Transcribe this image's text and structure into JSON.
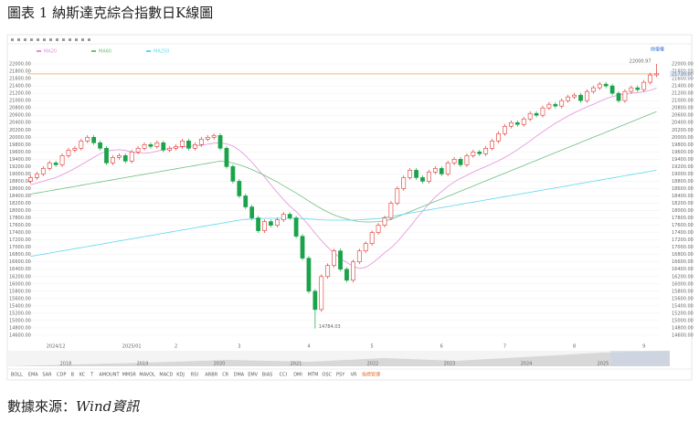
{
  "chart_data": {
    "type": "candlestick",
    "title": "圖表 1 納斯達克綜合指數日K線圖",
    "source_prefix": "數據來源：",
    "source_name": "Wind資訊",
    "adjust_label": "前復權",
    "toolbar": [
      "BOLL",
      "EMA",
      "SAR",
      "CDP",
      "B",
      "KC",
      "T",
      "AMOUNT",
      "MMSR",
      "MAVOL",
      "MACD",
      "KDJ",
      "RSI",
      "ARBR",
      "CR",
      "DMA",
      "EMV",
      "BIAS",
      "CCI",
      "DMI",
      "MTM",
      "OSC",
      "PSY",
      "VR",
      "指標管理"
    ],
    "navigator_years": [
      "2018",
      "2019",
      "2020",
      "2021",
      "2022",
      "2023",
      "2024",
      "2025"
    ],
    "categories": [
      null,
      null,
      null,
      null,
      "2024/12",
      null,
      null,
      null,
      null,
      null,
      null,
      null,
      null,
      null,
      null,
      null,
      "2025/01",
      null,
      null,
      null,
      null,
      null,
      null,
      "2",
      null,
      null,
      null,
      null,
      null,
      null,
      null,
      null,
      null,
      "3",
      null,
      null,
      null,
      null,
      null,
      null,
      null,
      null,
      null,
      null,
      "4",
      null,
      null,
      null,
      null,
      null,
      null,
      null,
      null,
      null,
      "5",
      null,
      null,
      null,
      null,
      null,
      null,
      null,
      null,
      null,
      null,
      "6",
      null,
      null,
      null,
      null,
      null,
      null,
      null,
      null,
      null,
      "7",
      null,
      null,
      null,
      null,
      null,
      null,
      null,
      null,
      null,
      null,
      "8",
      null,
      null,
      null,
      null,
      null,
      null,
      null,
      null,
      null,
      null,
      "9",
      null,
      null
    ],
    "open": [
      18800,
      18900,
      19000,
      19150,
      19300,
      19250,
      19500,
      19650,
      19700,
      19900,
      20000,
      19850,
      19700,
      19300,
      19450,
      19500,
      19350,
      19600,
      19700,
      19800,
      19750,
      19850,
      19650,
      19700,
      19750,
      19900,
      19700,
      19800,
      19950,
      20000,
      20050,
      19700,
      19200,
      18800,
      18400,
      18100,
      17800,
      17450,
      17700,
      17600,
      17750,
      17900,
      17800,
      17300,
      16700,
      15800,
      15300,
      16200,
      16500,
      16900,
      16400,
      16100,
      16600,
      16900,
      17100,
      17400,
      17600,
      17800,
      18200,
      18600,
      18900,
      19100,
      18900,
      18800,
      19050,
      19150,
      19000,
      19300,
      19400,
      19250,
      19500,
      19600,
      19550,
      19700,
      19900,
      20100,
      20300,
      20400,
      20350,
      20500,
      20650,
      20600,
      20800,
      20900,
      20850,
      21000,
      21100,
      21150,
      21000,
      21250,
      21350,
      21450,
      21400,
      21200,
      21000,
      21250,
      21350,
      21300,
      21500,
      21700
    ],
    "high": [
      18960,
      19060,
      19210,
      19360,
      19360,
      19560,
      19710,
      19760,
      19960,
      20060,
      20060,
      19910,
      19760,
      19510,
      19560,
      19560,
      19660,
      19760,
      19860,
      19860,
      19910,
      19910,
      19760,
      19810,
      19960,
      19960,
      19860,
      20010,
      20060,
      20110,
      20110,
      19760,
      19260,
      18860,
      18460,
      18160,
      17860,
      17760,
      17760,
      17810,
      17960,
      17960,
      17860,
      17360,
      16760,
      15860,
      16260,
      16560,
      16960,
      16960,
      16460,
      16660,
      16960,
      17160,
      17460,
      17660,
      17860,
      18260,
      18660,
      18960,
      19160,
      19160,
      18960,
      19110,
      19210,
      19210,
      19360,
      19460,
      19460,
      19560,
      19660,
      19660,
      19760,
      19960,
      20160,
      20360,
      20460,
      20460,
      20560,
      20710,
      20710,
      20860,
      20960,
      20960,
      21060,
      21160,
      21210,
      21210,
      21310,
      21410,
      21510,
      21510,
      21460,
      21260,
      21310,
      21410,
      21410,
      21560,
      21760,
      22000.97
    ],
    "low": [
      18740,
      18840,
      18940,
      19090,
      19190,
      19190,
      19440,
      19590,
      19640,
      19840,
      19790,
      19640,
      19240,
      19240,
      19390,
      19290,
      19290,
      19540,
      19640,
      19690,
      19690,
      19590,
      19590,
      19640,
      19690,
      19640,
      19640,
      19740,
      19890,
      19940,
      19640,
      19140,
      18740,
      18340,
      18040,
      17740,
      17390,
      17390,
      17540,
      17540,
      17690,
      17740,
      17240,
      16640,
      15740,
      14784.03,
      15240,
      16140,
      16440,
      16340,
      16040,
      16040,
      16540,
      16840,
      17040,
      17340,
      17540,
      17740,
      18140,
      18540,
      18840,
      18840,
      18740,
      18740,
      18990,
      18940,
      18940,
      19240,
      19190,
      19190,
      19440,
      19490,
      19490,
      19640,
      19840,
      20040,
      20240,
      20290,
      20290,
      20440,
      20540,
      20540,
      20740,
      20790,
      20790,
      20940,
      21040,
      20940,
      20940,
      21190,
      21290,
      21340,
      21140,
      20940,
      20940,
      21190,
      21240,
      21240,
      21440,
      21640
    ],
    "close": [
      18900,
      19000,
      19150,
      19300,
      19250,
      19500,
      19650,
      19700,
      19900,
      20000,
      19850,
      19700,
      19300,
      19450,
      19500,
      19350,
      19600,
      19700,
      19800,
      19750,
      19850,
      19650,
      19700,
      19750,
      19900,
      19700,
      19800,
      19950,
      20000,
      20050,
      19700,
      19200,
      18800,
      18400,
      18100,
      17800,
      17450,
      17700,
      17600,
      17750,
      17900,
      17800,
      17300,
      16700,
      15800,
      15300,
      16200,
      16500,
      16900,
      16400,
      16100,
      16600,
      16900,
      17100,
      17400,
      17600,
      17800,
      18200,
      18600,
      18900,
      19100,
      18900,
      18800,
      19050,
      19150,
      19000,
      19300,
      19400,
      19250,
      19500,
      19600,
      19550,
      19700,
      19900,
      20100,
      20300,
      20400,
      20350,
      20500,
      20650,
      20600,
      20800,
      20900,
      20850,
      21000,
      21100,
      21150,
      21000,
      21250,
      21350,
      21450,
      21400,
      21200,
      21000,
      21250,
      21350,
      21300,
      21500,
      21700,
      21730
    ],
    "up_color": "#e0342f",
    "down_color": "#1aa34a",
    "max_label": "22000.97",
    "min_label": "14784.03",
    "last_price": {
      "value": 21730,
      "label": "21730.00"
    },
    "last_price_color": "#f0a040",
    "series": [
      {
        "name": "MA20",
        "color": "#e58fd8",
        "values": [
          18700,
          18750,
          18800,
          18850,
          18900,
          18980,
          19060,
          19150,
          19250,
          19350,
          19450,
          19550,
          19620,
          19650,
          19660,
          19640,
          19600,
          19570,
          19560,
          19580,
          19620,
          19660,
          19700,
          19720,
          19740,
          19750,
          19760,
          19780,
          19810,
          19840,
          19850,
          19820,
          19760,
          19650,
          19500,
          19320,
          19120,
          18920,
          18700,
          18500,
          18300,
          18120,
          17970,
          17800,
          17600,
          17380,
          17180,
          17000,
          16850,
          16700,
          16580,
          16480,
          16420,
          16450,
          16560,
          16700,
          16850,
          16980,
          17150,
          17350,
          17560,
          17780,
          17980,
          18180,
          18370,
          18520,
          18660,
          18780,
          18880,
          18960,
          19050,
          19130,
          19200,
          19280,
          19360,
          19450,
          19550,
          19660,
          19780,
          19900,
          20030,
          20150,
          20270,
          20380,
          20480,
          20580,
          20670,
          20750,
          20830,
          20900,
          20980,
          21050,
          21110,
          21150,
          21180,
          21200,
          21220,
          21240,
          21280,
          21340
        ]
      },
      {
        "name": "MA60",
        "color": "#6fbf7f",
        "values": [
          18450,
          18480,
          18510,
          18540,
          18570,
          18600,
          18630,
          18660,
          18690,
          18720,
          18750,
          18780,
          18810,
          18840,
          18870,
          18900,
          18930,
          18960,
          18990,
          19020,
          19050,
          19080,
          19110,
          19140,
          19170,
          19200,
          19230,
          19260,
          19290,
          19320,
          19350,
          19330,
          19300,
          19250,
          19190,
          19120,
          19040,
          18960,
          18870,
          18780,
          18680,
          18580,
          18480,
          18370,
          18260,
          18150,
          18050,
          17960,
          17880,
          17820,
          17770,
          17730,
          17700,
          17690,
          17690,
          17700,
          17720,
          17760,
          17830,
          17900,
          17970,
          18040,
          18110,
          18180,
          18250,
          18320,
          18390,
          18460,
          18530,
          18600,
          18670,
          18740,
          18810,
          18880,
          18950,
          19020,
          19090,
          19160,
          19230,
          19300,
          19370,
          19440,
          19510,
          19580,
          19650,
          19720,
          19790,
          19860,
          19930,
          20000,
          20070,
          20140,
          20210,
          20280,
          20350,
          20420,
          20490,
          20560,
          20630,
          20700
        ]
      },
      {
        "name": "MA250",
        "color": "#5fd8ef",
        "values": [
          16750,
          16780,
          16810,
          16840,
          16870,
          16900,
          16930,
          16960,
          16990,
          17020,
          17050,
          17080,
          17110,
          17140,
          17170,
          17200,
          17230,
          17260,
          17290,
          17320,
          17350,
          17380,
          17410,
          17440,
          17470,
          17500,
          17530,
          17560,
          17590,
          17620,
          17650,
          17680,
          17710,
          17740,
          17760,
          17770,
          17780,
          17790,
          17790,
          17790,
          17790,
          17790,
          17790,
          17780,
          17770,
          17760,
          17750,
          17740,
          17740,
          17740,
          17740,
          17740,
          17750,
          17760,
          17770,
          17780,
          17810,
          17840,
          17870,
          17900,
          17930,
          17960,
          17990,
          18020,
          18050,
          18080,
          18110,
          18140,
          18170,
          18200,
          18230,
          18260,
          18290,
          18320,
          18350,
          18380,
          18410,
          18440,
          18470,
          18500,
          18530,
          18560,
          18590,
          18620,
          18650,
          18680,
          18710,
          18740,
          18770,
          18800,
          18830,
          18860,
          18890,
          18920,
          18950,
          18980,
          19010,
          19040,
          19070,
          19100
        ]
      }
    ],
    "ylim": [
      14400,
      22200
    ],
    "yticks": [
      {
        "value": 14600,
        "label": "14600.00"
      },
      {
        "value": 14800,
        "label": "14800.00"
      },
      {
        "value": 15000,
        "label": "15000.00"
      },
      {
        "value": 15200,
        "label": "15200.00"
      },
      {
        "value": 15400,
        "label": "15400.00"
      },
      {
        "value": 15600,
        "label": "15600.00"
      },
      {
        "value": 15800,
        "label": "15800.00"
      },
      {
        "value": 16000,
        "label": "16000.00"
      },
      {
        "value": 16200,
        "label": "16200.00"
      },
      {
        "value": 16400,
        "label": "16400.00"
      },
      {
        "value": 16600,
        "label": "16600.00"
      },
      {
        "value": 16800,
        "label": "16800.00"
      },
      {
        "value": 17000,
        "label": "17000.00"
      },
      {
        "value": 17200,
        "label": "17200.00"
      },
      {
        "value": 17400,
        "label": "17400.00"
      },
      {
        "value": 17600,
        "label": "17600.00"
      },
      {
        "value": 17800,
        "label": "17800.00"
      },
      {
        "value": 18000,
        "label": "18000.00"
      },
      {
        "value": 18200,
        "label": "18200.00"
      },
      {
        "value": 18400,
        "label": "18400.00"
      },
      {
        "value": 18600,
        "label": "18600.00"
      },
      {
        "value": 18800,
        "label": "18800.00"
      },
      {
        "value": 19000,
        "label": "19000.00"
      },
      {
        "value": 19200,
        "label": "19200.00"
      },
      {
        "value": 19400,
        "label": "19400.00"
      },
      {
        "value": 19600,
        "label": "19600.00"
      },
      {
        "value": 19800,
        "label": "19800.00"
      },
      {
        "value": 20000,
        "label": "20000.00"
      },
      {
        "value": 20200,
        "label": "20200.00"
      },
      {
        "value": 20400,
        "label": "20400.00"
      },
      {
        "value": 20600,
        "label": "20600.00"
      },
      {
        "value": 20800,
        "label": "20800.00"
      },
      {
        "value": 21000,
        "label": "21000.00"
      },
      {
        "value": 21200,
        "label": "21200.00"
      },
      {
        "value": 21400,
        "label": "21400.00"
      },
      {
        "value": 21600,
        "label": "21600.00"
      },
      {
        "value": 21800,
        "label": "21800.00"
      },
      {
        "value": 22000,
        "label": "22000.00"
      }
    ],
    "grid": true
  }
}
